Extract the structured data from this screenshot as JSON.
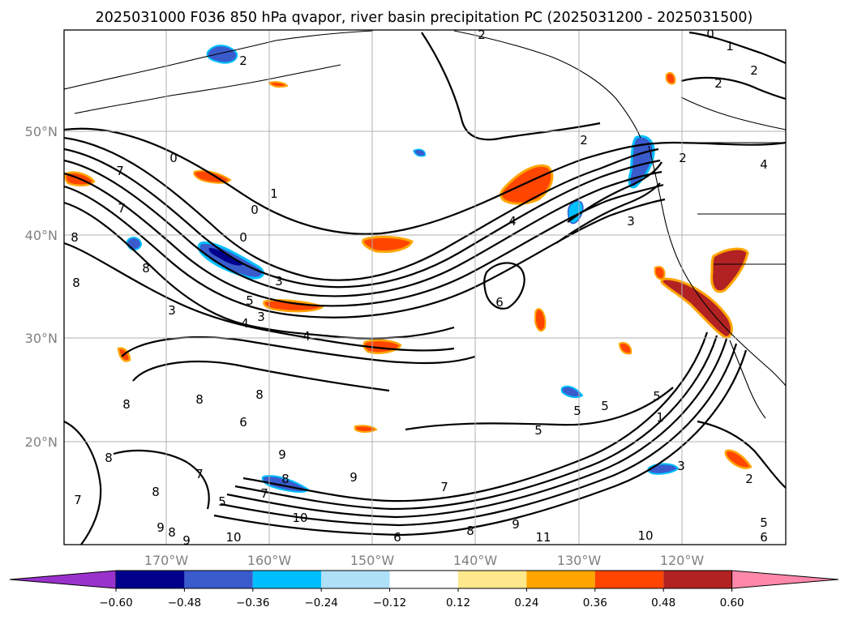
{
  "chart_data": {
    "type": "map contour",
    "title": "2025031000 F036 850 hPa qvapor, river basin precipitation PC (2025031200 - 2025031500)",
    "lat_ticks": [
      "50°N",
      "40°N",
      "30°N",
      "20°N"
    ],
    "lon_ticks": [
      "170°W",
      "160°W",
      "150°W",
      "140°W",
      "130°W",
      "120°W"
    ],
    "extent": {
      "lon": [
        -178,
        -108
      ],
      "lat": [
        10,
        60
      ]
    },
    "grid": true,
    "colorbar": {
      "orientation": "horizontal",
      "extend": "both",
      "tick_labels": [
        "−0.60",
        "−0.48",
        "−0.36",
        "−0.24",
        "−0.12",
        "0.12",
        "0.24",
        "0.36",
        "0.48",
        "0.60"
      ],
      "ticks": [
        -0.6,
        -0.48,
        -0.36,
        -0.24,
        -0.12,
        0.12,
        0.24,
        0.36,
        0.48,
        0.6
      ],
      "colors": [
        "#9932cc",
        "#00008b",
        "#3a5bcc",
        "#00bfff",
        "#aee0f8",
        "#ffffff",
        "#ffe88c",
        "#ffa500",
        "#ff4500",
        "#b22222",
        "#ff88aa"
      ]
    },
    "contour_labels": [
      "0",
      "1",
      "2",
      "3",
      "4",
      "5",
      "6",
      "7",
      "8",
      "9",
      "10",
      "11"
    ]
  }
}
